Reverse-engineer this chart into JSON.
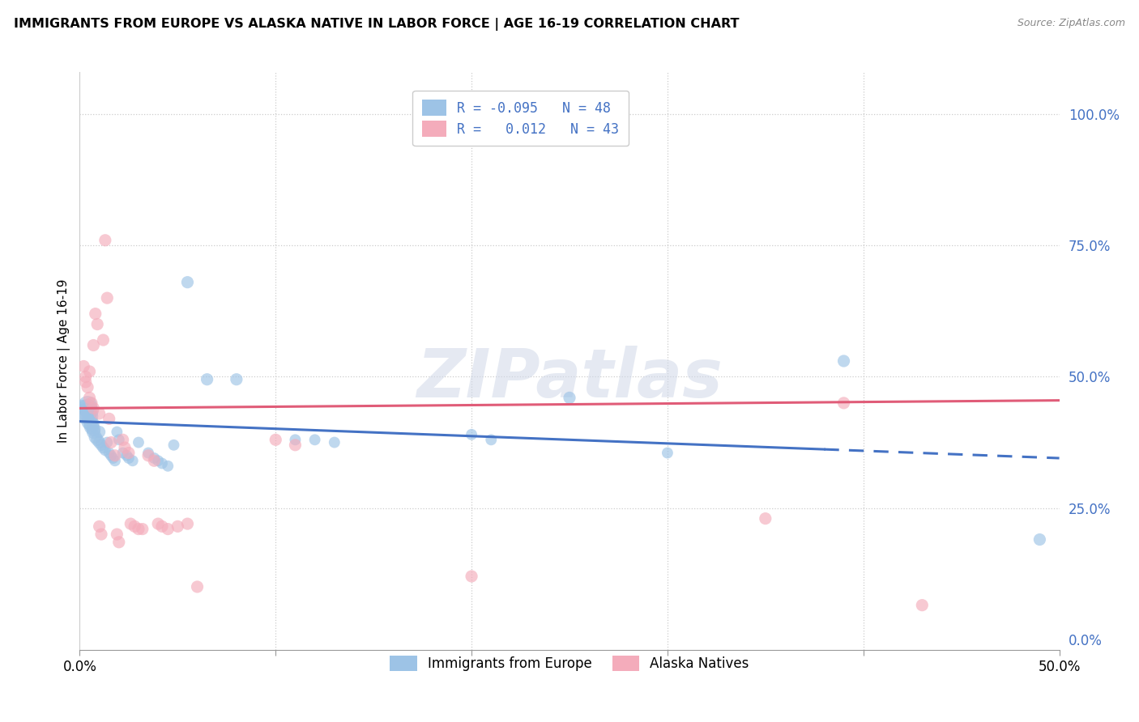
{
  "title": "IMMIGRANTS FROM EUROPE VS ALASKA NATIVE IN LABOR FORCE | AGE 16-19 CORRELATION CHART",
  "source": "Source: ZipAtlas.com",
  "ylabel": "In Labor Force | Age 16-19",
  "xlim": [
    0.0,
    0.5
  ],
  "ylim": [
    -0.02,
    1.08
  ],
  "xticks": [
    0.0,
    0.1,
    0.2,
    0.3,
    0.4,
    0.5
  ],
  "xticklabels_ends": [
    "0.0%",
    "50.0%"
  ],
  "yticks_right": [
    0.0,
    0.25,
    0.5,
    0.75,
    1.0
  ],
  "yticklabels_right": [
    "0.0%",
    "25.0%",
    "50.0%",
    "75.0%",
    "100.0%"
  ],
  "blue_R": -0.095,
  "blue_N": 48,
  "pink_R": 0.012,
  "pink_N": 43,
  "blue_color": "#9DC3E6",
  "pink_color": "#F4ACBB",
  "trend_blue": "#4472C4",
  "trend_pink": "#E05C78",
  "watermark": "ZIPatlas",
  "legend_label_blue": "Immigrants from Europe",
  "legend_label_pink": "Alaska Natives",
  "blue_trend_y0": 0.415,
  "blue_trend_y1": 0.345,
  "blue_trend_solid_end": 0.38,
  "pink_trend_y0": 0.44,
  "pink_trend_y1": 0.455,
  "blue_scatter": [
    [
      0.002,
      0.435
    ],
    [
      0.003,
      0.43
    ],
    [
      0.004,
      0.445
    ],
    [
      0.004,
      0.44
    ],
    [
      0.005,
      0.435
    ],
    [
      0.005,
      0.425
    ],
    [
      0.005,
      0.415
    ],
    [
      0.006,
      0.41
    ],
    [
      0.006,
      0.405
    ],
    [
      0.007,
      0.4
    ],
    [
      0.007,
      0.395
    ],
    [
      0.008,
      0.385
    ],
    [
      0.009,
      0.38
    ],
    [
      0.01,
      0.395
    ],
    [
      0.01,
      0.375
    ],
    [
      0.011,
      0.37
    ],
    [
      0.012,
      0.365
    ],
    [
      0.013,
      0.36
    ],
    [
      0.014,
      0.375
    ],
    [
      0.015,
      0.355
    ],
    [
      0.016,
      0.35
    ],
    [
      0.017,
      0.345
    ],
    [
      0.018,
      0.34
    ],
    [
      0.019,
      0.395
    ],
    [
      0.02,
      0.38
    ],
    [
      0.022,
      0.355
    ],
    [
      0.024,
      0.35
    ],
    [
      0.025,
      0.345
    ],
    [
      0.027,
      0.34
    ],
    [
      0.03,
      0.375
    ],
    [
      0.035,
      0.355
    ],
    [
      0.038,
      0.345
    ],
    [
      0.04,
      0.34
    ],
    [
      0.042,
      0.335
    ],
    [
      0.045,
      0.33
    ],
    [
      0.048,
      0.37
    ],
    [
      0.055,
      0.68
    ],
    [
      0.065,
      0.495
    ],
    [
      0.08,
      0.495
    ],
    [
      0.11,
      0.38
    ],
    [
      0.12,
      0.38
    ],
    [
      0.13,
      0.375
    ],
    [
      0.2,
      0.39
    ],
    [
      0.21,
      0.38
    ],
    [
      0.25,
      0.46
    ],
    [
      0.3,
      0.355
    ],
    [
      0.39,
      0.53
    ],
    [
      0.49,
      0.19
    ]
  ],
  "blue_sizes": [
    400,
    350,
    300,
    280,
    260,
    240,
    220,
    200,
    180,
    160,
    150,
    140,
    130,
    120,
    120,
    110,
    110,
    100,
    100,
    100,
    100,
    100,
    100,
    100,
    100,
    100,
    100,
    100,
    100,
    100,
    100,
    100,
    100,
    100,
    100,
    100,
    120,
    120,
    120,
    100,
    100,
    100,
    100,
    100,
    120,
    100,
    120,
    120
  ],
  "pink_scatter": [
    [
      0.002,
      0.52
    ],
    [
      0.003,
      0.5
    ],
    [
      0.003,
      0.49
    ],
    [
      0.004,
      0.48
    ],
    [
      0.005,
      0.51
    ],
    [
      0.005,
      0.46
    ],
    [
      0.006,
      0.45
    ],
    [
      0.007,
      0.56
    ],
    [
      0.007,
      0.44
    ],
    [
      0.008,
      0.62
    ],
    [
      0.009,
      0.6
    ],
    [
      0.01,
      0.43
    ],
    [
      0.01,
      0.215
    ],
    [
      0.011,
      0.2
    ],
    [
      0.012,
      0.57
    ],
    [
      0.013,
      0.76
    ],
    [
      0.014,
      0.65
    ],
    [
      0.015,
      0.42
    ],
    [
      0.016,
      0.375
    ],
    [
      0.018,
      0.35
    ],
    [
      0.019,
      0.2
    ],
    [
      0.02,
      0.185
    ],
    [
      0.022,
      0.38
    ],
    [
      0.023,
      0.365
    ],
    [
      0.025,
      0.355
    ],
    [
      0.026,
      0.22
    ],
    [
      0.028,
      0.215
    ],
    [
      0.03,
      0.21
    ],
    [
      0.032,
      0.21
    ],
    [
      0.035,
      0.35
    ],
    [
      0.038,
      0.34
    ],
    [
      0.04,
      0.22
    ],
    [
      0.042,
      0.215
    ],
    [
      0.045,
      0.21
    ],
    [
      0.05,
      0.215
    ],
    [
      0.055,
      0.22
    ],
    [
      0.06,
      0.1
    ],
    [
      0.1,
      0.38
    ],
    [
      0.11,
      0.37
    ],
    [
      0.2,
      0.12
    ],
    [
      0.35,
      0.23
    ],
    [
      0.39,
      0.45
    ],
    [
      0.43,
      0.065
    ]
  ],
  "pink_sizes": [
    120,
    120,
    120,
    120,
    120,
    120,
    120,
    120,
    120,
    120,
    120,
    120,
    120,
    120,
    120,
    120,
    120,
    120,
    120,
    120,
    120,
    120,
    120,
    120,
    120,
    120,
    120,
    120,
    120,
    120,
    120,
    120,
    120,
    120,
    120,
    120,
    120,
    120,
    120,
    120,
    120,
    120,
    120
  ]
}
